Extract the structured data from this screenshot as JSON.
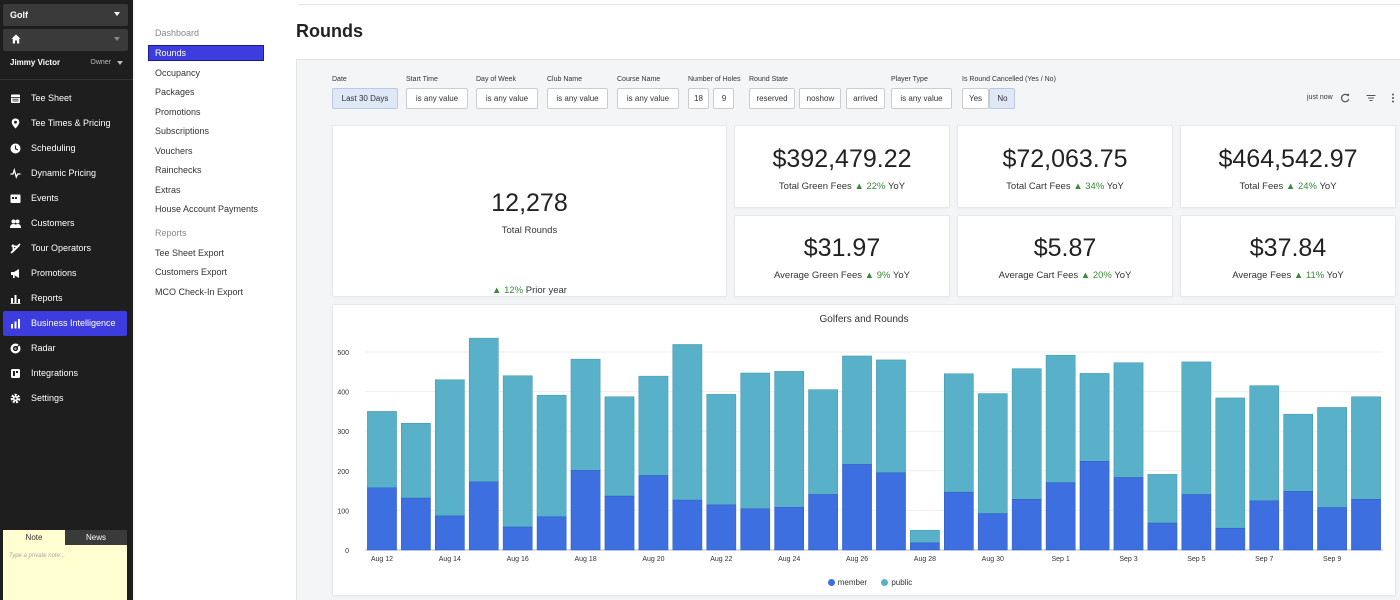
{
  "sidebar": {
    "org_select": "Golf",
    "user_name": "Jimmy Victor",
    "user_role": "Owner",
    "items": [
      {
        "label": "Tee Sheet",
        "icon": "calendar-icon"
      },
      {
        "label": "Tee Times & Pricing",
        "icon": "location-pin-icon"
      },
      {
        "label": "Scheduling",
        "icon": "clock-icon"
      },
      {
        "label": "Dynamic Pricing",
        "icon": "pulse-icon"
      },
      {
        "label": "Events",
        "icon": "events-icon"
      },
      {
        "label": "Customers",
        "icon": "users-icon"
      },
      {
        "label": "Tour Operators",
        "icon": "airplane-icon"
      },
      {
        "label": "Promotions",
        "icon": "megaphone-icon"
      },
      {
        "label": "Reports",
        "icon": "bar-chart-icon"
      },
      {
        "label": "Business Intelligence",
        "icon": "analytics-icon",
        "active": true
      },
      {
        "label": "Radar",
        "icon": "radar-icon"
      },
      {
        "label": "Integrations",
        "icon": "puzzle-icon"
      },
      {
        "label": "Settings",
        "icon": "gear-icon"
      }
    ],
    "note_tab": "Note",
    "news_tab": "News",
    "note_placeholder": "Type a private note..."
  },
  "submenu": {
    "dashboard_heading": "Dashboard",
    "dashboard_items": [
      "Rounds",
      "Occupancy",
      "Packages",
      "Promotions",
      "Subscriptions",
      "Vouchers",
      "Rainchecks",
      "Extras",
      "House Account Payments"
    ],
    "reports_heading": "Reports",
    "report_items": [
      "Tee Sheet Export",
      "Customers Export",
      "MCO Check-In Export"
    ]
  },
  "page": {
    "title": "Rounds"
  },
  "filters": {
    "date_label": "Date",
    "date_value": "Last 30 Days",
    "start_time_label": "Start Time",
    "start_time_value": "is any value",
    "dow_label": "Day of Week",
    "dow_value": "is any value",
    "club_label": "Club Name",
    "club_value": "is any value",
    "course_label": "Course Name",
    "course_value": "is any value",
    "holes_label": "Number of Holes",
    "holes_18": "18",
    "holes_9": "9",
    "state_label": "Round State",
    "state_reserved": "reserved",
    "state_noshow": "noshow",
    "state_arrived": "arrived",
    "player_label": "Player Type",
    "player_value": "is any value",
    "cancelled_label": "Is Round Cancelled (Yes / No)",
    "cancelled_yes": "Yes",
    "cancelled_no": "No",
    "updated": "just now"
  },
  "kpis": {
    "total_rounds": {
      "value": "12,278",
      "label": "Total Rounds",
      "change": "12%",
      "change_label": "Prior year"
    },
    "green_fees": {
      "value": "$392,479.22",
      "label": "Total Green Fees",
      "change": "22%",
      "suffix": "YoY"
    },
    "cart_fees": {
      "value": "$72,063.75",
      "label": "Total Cart Fees",
      "change": "34%",
      "suffix": "YoY"
    },
    "total_fees": {
      "value": "$464,542.97",
      "label": "Total Fees",
      "change": "24%",
      "suffix": "YoY"
    },
    "avg_green": {
      "value": "$31.97",
      "label": "Average Green Fees",
      "change": "9%",
      "suffix": "YoY"
    },
    "avg_cart": {
      "value": "$5.87",
      "label": "Average Cart Fees",
      "change": "20%",
      "suffix": "YoY"
    },
    "avg_fees": {
      "value": "$37.84",
      "label": "Average Fees",
      "change": "11%",
      "suffix": "YoY"
    }
  },
  "colors": {
    "member": "#3e6fe0",
    "public": "#58b1c9",
    "accent": "#3d3ddf",
    "up": "#3a8a3a"
  },
  "chart_data": {
    "type": "bar",
    "stacked": true,
    "title": "Golfers and Rounds",
    "categories": [
      "Aug 12",
      "Aug 13",
      "Aug 14",
      "Aug 15",
      "Aug 16",
      "Aug 17",
      "Aug 18",
      "Aug 19",
      "Aug 20",
      "Aug 21",
      "Aug 22",
      "Aug 23",
      "Aug 24",
      "Aug 25",
      "Aug 26",
      "Aug 27",
      "Aug 28",
      "Aug 29",
      "Aug 30",
      "Aug 31",
      "Sep 1",
      "Sep 2",
      "Sep 3",
      "Sep 4",
      "Sep 5",
      "Sep 6",
      "Sep 7",
      "Sep 8",
      "Sep 9",
      "Sep 10"
    ],
    "tick_labels": [
      "Aug 12",
      "Aug 14",
      "Aug 16",
      "Aug 18",
      "Aug 20",
      "Aug 22",
      "Aug 24",
      "Aug 26",
      "Aug 28",
      "Aug 30",
      "Sep 1",
      "Sep 3",
      "Sep 5",
      "Sep 7",
      "Sep 9"
    ],
    "series": [
      {
        "name": "member",
        "values": [
          157,
          131,
          86,
          172,
          58,
          84,
          201,
          136,
          188,
          126,
          114,
          104,
          108,
          140,
          216,
          195,
          18,
          146,
          92,
          128,
          170,
          224,
          183,
          68,
          140,
          55,
          124,
          148,
          107,
          128
        ]
      },
      {
        "name": "public",
        "values": [
          193,
          189,
          344,
          363,
          382,
          307,
          281,
          251,
          251,
          393,
          279,
          343,
          343,
          265,
          274,
          285,
          32,
          299,
          303,
          330,
          322,
          222,
          290,
          123,
          335,
          329,
          291,
          195,
          253,
          259
        ]
      }
    ],
    "ylim": [
      0,
      500
    ],
    "yticks": [
      0,
      100,
      200,
      300,
      400,
      500
    ],
    "legend": "bottom"
  }
}
